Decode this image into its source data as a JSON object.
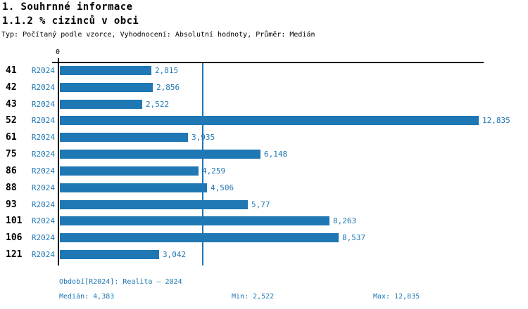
{
  "header": {
    "section_title": "1. Souhrnné informace",
    "indicator_title": "1.1.2 % cizinců v obci",
    "meta": "Typ: Počítaný podle vzorce, Vyhodnocení: Absolutní hodnoty, Průměr: Medián"
  },
  "chart_data": {
    "type": "bar",
    "orientation": "horizontal",
    "title": "1.1.2 % cizinců v obci",
    "categories": [
      "41",
      "42",
      "43",
      "52",
      "61",
      "75",
      "86",
      "88",
      "93",
      "101",
      "106",
      "121"
    ],
    "series": [
      {
        "name": "R2024",
        "values": [
          2.815,
          2.856,
          2.522,
          12.835,
          3.935,
          6.148,
          4.259,
          4.506,
          5.77,
          8.263,
          8.537,
          3.042
        ],
        "value_labels": [
          "2,815",
          "2,856",
          "2,522",
          "12,835",
          "3,935",
          "6,148",
          "4,259",
          "4,506",
          "5,77",
          "8,263",
          "8,537",
          "3,042"
        ]
      }
    ],
    "x_axis": {
      "zero_tick_label": "0",
      "min": 0,
      "max": 12.835
    },
    "median_line_value": 4.3825,
    "grid": false,
    "legend_position": "bottom"
  },
  "legend": {
    "period": "Období[R2024]: Realita – 2024",
    "median": "Medián: 4,383",
    "min": "Min: 2,522",
    "max": "Max: 12,835"
  },
  "colors": {
    "accent": "#1f77b4",
    "text": "#000000",
    "background": "#ffffff"
  }
}
